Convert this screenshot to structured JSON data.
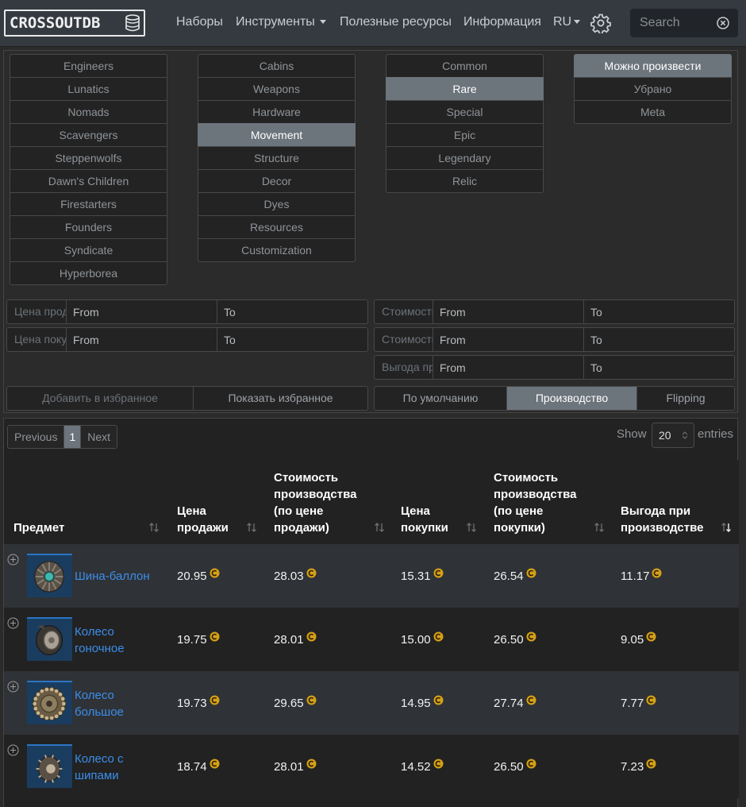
{
  "navbar": {
    "brand": "CROSSOUTDB",
    "links": [
      "Наборы",
      "Инструменты",
      "Полезные ресурсы",
      "Информация"
    ],
    "lang": "RU",
    "search_placeholder": "Search"
  },
  "filters": {
    "factions": [
      "Engineers",
      "Lunatics",
      "Nomads",
      "Scavengers",
      "Steppenwolfs",
      "Dawn's Children",
      "Firestarters",
      "Founders",
      "Syndicate",
      "Hyperborea"
    ],
    "categories": [
      "Cabins",
      "Weapons",
      "Hardware",
      "Movement",
      "Structure",
      "Decor",
      "Dyes",
      "Resources",
      "Customization"
    ],
    "categories_active": "Movement",
    "rarities": [
      "Common",
      "Rare",
      "Special",
      "Epic",
      "Legendary",
      "Relic"
    ],
    "rarities_active": "Rare",
    "craft": [
      "Можно произвести",
      "Убрано",
      "Meta"
    ],
    "craft_active": "Можно произвести",
    "ranges_left": [
      {
        "label": "Цена продажи",
        "from": "From",
        "to": "To"
      },
      {
        "label": "Цена покупки",
        "from": "From",
        "to": "To"
      }
    ],
    "ranges_right": [
      {
        "label": "Стоимость производства (по цене продажи)",
        "from": "From",
        "to": "To"
      },
      {
        "label": "Стоимость производства (по цене покупки)",
        "from": "From",
        "to": "To"
      },
      {
        "label": "Выгода при производстве",
        "from": "From",
        "to": "To"
      }
    ],
    "fav_add": "Добавить в избранное",
    "fav_show": "Показать избранное",
    "modes": [
      "По умолчанию",
      "Производство",
      "Flipping"
    ],
    "modes_active": "Производство"
  },
  "table": {
    "pager": {
      "prev": "Previous",
      "page": "1",
      "next": "Next"
    },
    "show_label": "Show",
    "page_size": "20",
    "entries_label": "entries",
    "columns": [
      "Предмет",
      "Цена продажи",
      "Стоимость производства (по цене продажи)",
      "Цена покупки",
      "Стоимость производства (по цене покупки)",
      "Выгода при производстве"
    ],
    "rows": [
      {
        "name": "Шина-баллон",
        "sell": "20.95",
        "craft_sell": "28.03",
        "buy": "15.31",
        "craft_buy": "26.54",
        "profit": "11.17",
        "icon": "balloon-tire-icon"
      },
      {
        "name": "Колесо гоночное",
        "sell": "19.75",
        "craft_sell": "28.01",
        "buy": "15.00",
        "craft_buy": "26.50",
        "profit": "9.05",
        "icon": "racing-wheel-icon"
      },
      {
        "name": "Колесо большое",
        "sell": "19.73",
        "craft_sell": "29.65",
        "buy": "14.95",
        "craft_buy": "27.74",
        "profit": "7.77",
        "icon": "large-wheel-icon"
      },
      {
        "name": "Колесо с шипами",
        "sell": "18.74",
        "craft_sell": "28.01",
        "buy": "14.52",
        "craft_buy": "26.50",
        "profit": "7.23",
        "icon": "spiked-wheel-icon"
      }
    ]
  },
  "colors": {
    "nav_bg": "#343a40",
    "active_btn": "#6c747c",
    "link": "#3b8eea",
    "coin": "#d4a017",
    "row_stripe": "#2f3236"
  }
}
